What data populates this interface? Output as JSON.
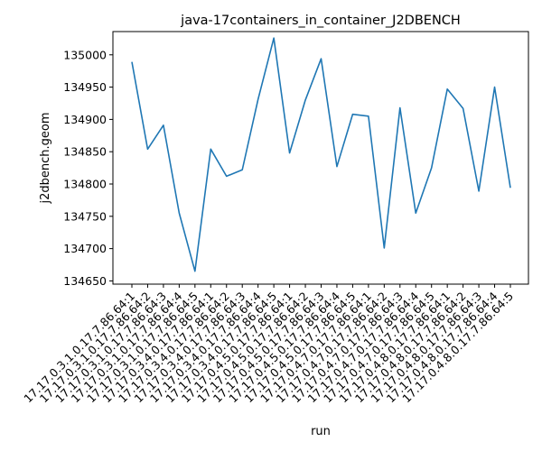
{
  "chart_data": {
    "type": "line",
    "title": "java-17containers_in_container_J2DBENCH",
    "xlabel": "run",
    "ylabel": "j2dbench.geom",
    "ylim": [
      134645,
      135036
    ],
    "yticks": [
      134650,
      134700,
      134750,
      134800,
      134850,
      134900,
      134950,
      135000
    ],
    "grid": false,
    "line_color": "#1f77b4",
    "categories": [
      "17.17.0.3.1.0.17.7.86.64:1",
      "17.17.0.3.1.0.17.7.86.64:2",
      "17.17.0.3.1.0.17.7.86.64:3",
      "17.17.0.3.1.0.17.7.86.64:4",
      "17.17.0.3.1.0.17.7.86.64:5",
      "17.17.0.3.4.0.17.7.86.64:1",
      "17.17.0.3.4.0.17.7.86.64:2",
      "17.17.0.3.4.0.17.7.86.64:3",
      "17.17.0.3.4.0.17.7.86.64:4",
      "17.17.0.3.4.0.17.7.86.64:5",
      "17.17.0.4.5.0.17.7.86.64:1",
      "17.17.0.4.5.0.17.7.86.64:2",
      "17.17.0.4.5.0.17.7.86.64:3",
      "17.17.0.4.5.0.17.7.86.64:4",
      "17.17.0.4.5.0.17.7.86.64:5",
      "17.17.0.4.7.0.17.7.86.64:1",
      "17.17.0.4.7.0.17.7.86.64:2",
      "17.17.0.4.7.0.17.7.86.64:3",
      "17.17.0.4.7.0.17.7.86.64:4",
      "17.17.0.4.7.0.17.7.86.64:5",
      "17.17.0.4.8.0.17.7.86.64:1",
      "17.17.0.4.8.0.17.7.86.64:2",
      "17.17.0.4.8.0.17.7.86.64:3",
      "17.17.0.4.8.0.17.7.86.64:4",
      "17.17.0.4.8.0.17.7.86.64:5"
    ],
    "series": [
      {
        "values": [
          134989,
          134854,
          134891,
          134755,
          134665,
          134854,
          134812,
          134822,
          134931,
          135026,
          134848,
          134930,
          134994,
          134827,
          134908,
          134905,
          134701,
          134918,
          134755,
          134825,
          134947,
          134917,
          134789,
          134950,
          134794
        ]
      }
    ]
  }
}
